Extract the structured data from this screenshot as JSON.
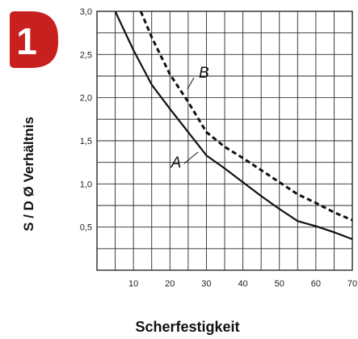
{
  "badge": {
    "number": "1",
    "color": "#c8201f"
  },
  "chart_data": {
    "type": "line",
    "title": "",
    "xlabel": "Scherfestigkeit",
    "ylabel": "S / D Ø Verhältnis",
    "xlim": [
      0,
      70
    ],
    "ylim": [
      0,
      3.0
    ],
    "x_ticks": [
      "10",
      "20",
      "30",
      "40",
      "50",
      "60",
      "70"
    ],
    "y_ticks": [
      "0,5",
      "1,0",
      "1,5",
      "2,0",
      "2,5",
      "3,0"
    ],
    "grid": true,
    "series": [
      {
        "name": "A",
        "style": "solid",
        "color": "#111111",
        "x": [
          5,
          10,
          15,
          20,
          25,
          30,
          35,
          40,
          45,
          50,
          55,
          60,
          65,
          70
        ],
        "y": [
          3.0,
          2.55,
          2.15,
          1.87,
          1.6,
          1.33,
          1.18,
          1.02,
          0.86,
          0.71,
          0.57,
          0.51,
          0.44,
          0.36
        ]
      },
      {
        "name": "B",
        "style": "dashed",
        "color": "#111111",
        "x": [
          12,
          15,
          20,
          25,
          30,
          35,
          40,
          45,
          50,
          55,
          60,
          65,
          70
        ],
        "y": [
          3.0,
          2.7,
          2.27,
          1.95,
          1.6,
          1.43,
          1.3,
          1.16,
          1.02,
          0.88,
          0.78,
          0.67,
          0.58
        ]
      }
    ]
  }
}
